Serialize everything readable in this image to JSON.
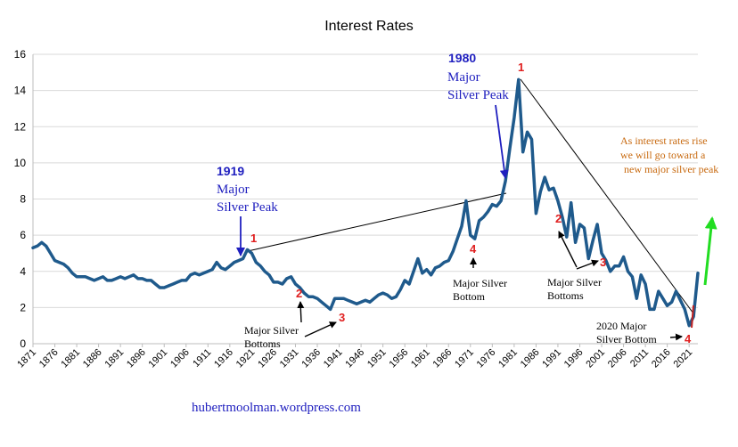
{
  "chart_data": {
    "type": "line",
    "title": "Interest Rates",
    "xlabel": "",
    "ylabel": "",
    "ylim": [
      0,
      16
    ],
    "xlim": [
      1871,
      2023
    ],
    "yticks": [
      0,
      2,
      4,
      6,
      8,
      10,
      12,
      14,
      16
    ],
    "xticks": [
      1871,
      1876,
      1881,
      1886,
      1891,
      1896,
      1901,
      1906,
      1911,
      1916,
      1921,
      1926,
      1931,
      1936,
      1941,
      1946,
      1951,
      1956,
      1961,
      1966,
      1971,
      1976,
      1981,
      1986,
      1991,
      1996,
      2001,
      2006,
      2011,
      2016,
      2021
    ],
    "grid": true,
    "legend": "none",
    "line_color": "#1f5a8c",
    "series": [
      {
        "x": [
          1871,
          1872,
          1873,
          1874,
          1875,
          1876,
          1877,
          1878,
          1879,
          1880,
          1881,
          1882,
          1883,
          1884,
          1885,
          1886,
          1887,
          1888,
          1889,
          1890,
          1891,
          1892,
          1893,
          1894,
          1895,
          1896,
          1897,
          1898,
          1899,
          1900,
          1901,
          1902,
          1903,
          1904,
          1905,
          1906,
          1907,
          1908,
          1909,
          1910,
          1911,
          1912,
          1913,
          1914,
          1915,
          1916,
          1917,
          1918,
          1919,
          1920,
          1921,
          1922,
          1923,
          1924,
          1925,
          1926,
          1927,
          1928,
          1929,
          1930,
          1931,
          1932,
          1933,
          1934,
          1935,
          1936,
          1937,
          1938,
          1939,
          1940,
          1941,
          1942,
          1943,
          1944,
          1945,
          1946,
          1947,
          1948,
          1949,
          1950,
          1951,
          1952,
          1953,
          1954,
          1955,
          1956,
          1957,
          1958,
          1959,
          1960,
          1961,
          1962,
          1963,
          1964,
          1965,
          1966,
          1967,
          1968,
          1969,
          1970,
          1971,
          1972,
          1973,
          1974,
          1975,
          1976,
          1977,
          1978,
          1979,
          1980,
          1981,
          1982,
          1983,
          1984,
          1985,
          1986,
          1987,
          1988,
          1989,
          1990,
          1991,
          1992,
          1993,
          1994,
          1995,
          1996,
          1997,
          1998,
          1999,
          2000,
          2001,
          2002,
          2003,
          2004,
          2005,
          2006,
          2007,
          2008,
          2009,
          2010,
          2011,
          2012,
          2013,
          2014,
          2015,
          2016,
          2017,
          2018,
          2019,
          2020,
          2021,
          2022,
          2023
        ],
        "values": [
          5.3,
          5.4,
          5.6,
          5.4,
          5.0,
          4.6,
          4.5,
          4.4,
          4.2,
          3.9,
          3.7,
          3.7,
          3.7,
          3.6,
          3.5,
          3.6,
          3.7,
          3.5,
          3.5,
          3.6,
          3.7,
          3.6,
          3.7,
          3.8,
          3.6,
          3.6,
          3.5,
          3.5,
          3.3,
          3.1,
          3.1,
          3.2,
          3.3,
          3.4,
          3.5,
          3.5,
          3.8,
          3.9,
          3.8,
          3.9,
          4.0,
          4.1,
          4.5,
          4.2,
          4.1,
          4.3,
          4.5,
          4.6,
          4.7,
          5.2,
          5.0,
          4.5,
          4.3,
          4.0,
          3.8,
          3.4,
          3.4,
          3.3,
          3.6,
          3.7,
          3.3,
          3.1,
          2.8,
          2.6,
          2.6,
          2.5,
          2.3,
          2.1,
          1.9,
          2.5,
          2.5,
          2.5,
          2.4,
          2.3,
          2.2,
          2.3,
          2.4,
          2.3,
          2.5,
          2.7,
          2.8,
          2.7,
          2.5,
          2.6,
          3.0,
          3.5,
          3.3,
          4.0,
          4.7,
          3.9,
          4.1,
          3.8,
          4.2,
          4.3,
          4.5,
          4.6,
          5.1,
          5.8,
          6.5,
          7.9,
          6.0,
          5.8,
          6.8,
          7.0,
          7.3,
          7.7,
          7.6,
          7.9,
          9.0,
          10.8,
          12.5,
          14.6,
          10.6,
          11.7,
          11.3,
          7.2,
          8.4,
          9.2,
          8.5,
          8.6,
          7.9,
          7.0,
          5.9,
          7.8,
          5.6,
          6.6,
          6.4,
          4.7,
          5.7,
          6.6,
          5.0,
          4.6,
          4.0,
          4.3,
          4.3,
          4.8,
          4.0,
          3.7,
          2.5,
          3.8,
          3.3,
          1.9,
          1.9,
          2.9,
          2.5,
          2.1,
          2.3,
          2.9,
          2.4,
          1.9,
          1.0,
          1.5,
          3.9
        ]
      }
    ],
    "annotations": {
      "peak_1919": {
        "year": "1919",
        "line1": "Major",
        "line2": "Silver  Peak",
        "marker": "1"
      },
      "peak_1980": {
        "year": "1980",
        "line1": "Major",
        "line2": "Silver  Peak",
        "marker": "1"
      },
      "bottom_1931": {
        "marker": "2"
      },
      "bottom_1941": {
        "marker": "3"
      },
      "bottoms_1930s": {
        "line1": "Major  Silver",
        "line2": "Bottoms"
      },
      "bottom_1971": {
        "marker": "4",
        "line1": "Major  Silver",
        "line2": "Bottom"
      },
      "bottom_1990": {
        "marker": "2"
      },
      "bottom_2000": {
        "marker": "3"
      },
      "bottoms_1990s": {
        "line1": "Major  Silver",
        "line2": "Bottoms"
      },
      "bottom_2020": {
        "marker": "4",
        "line1": "2020  Major",
        "line2": "Silver  Bottom"
      },
      "forecast": {
        "line1": "As  interest  rates  rise",
        "line2": "we  will  go  toward  a",
        "line3": "new  major  silver  peak"
      }
    },
    "source": "hubertmoolman.wordpress.com"
  }
}
